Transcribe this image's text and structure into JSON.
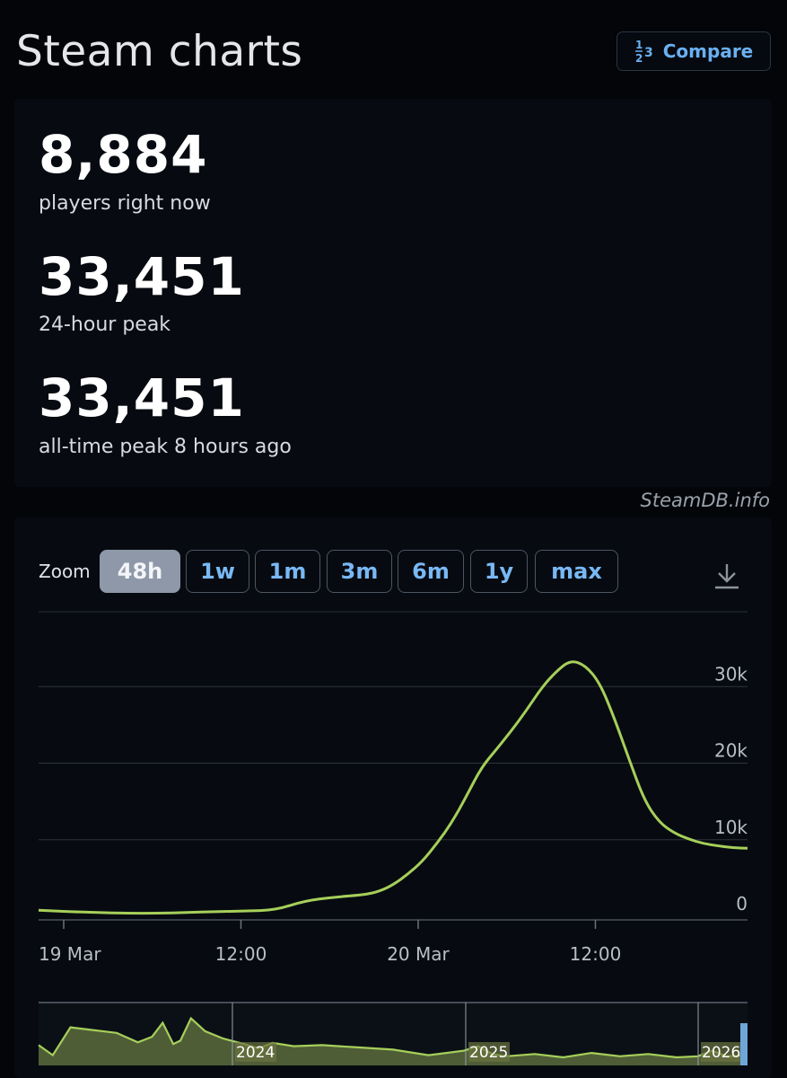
{
  "page": {
    "title": "Steam charts",
    "compare_label": "Compare"
  },
  "stats": [
    {
      "value": "8,884",
      "label": "players right now"
    },
    {
      "value": "33,451",
      "label": "24-hour peak"
    },
    {
      "value": "33,451",
      "label": "all-time peak 8 hours ago"
    }
  ],
  "watermark": "SteamDB.info",
  "zoom": {
    "label": "Zoom",
    "buttons": [
      "48h",
      "1w",
      "1m",
      "3m",
      "6m",
      "1y",
      "max"
    ],
    "active": "48h"
  },
  "icons": {
    "compare": "ranking-numbers-icon",
    "download": "download-arrow-icon"
  },
  "colors": {
    "series_line": "#a6cf5a",
    "active_zoom_bg": "#8f98a8",
    "zoom_text": "#79b8f4"
  },
  "chart_data": {
    "type": "line",
    "title": "",
    "xlabel": "",
    "ylabel": "",
    "ylim": [
      0,
      40000
    ],
    "yticks": [
      0,
      10000,
      20000,
      30000
    ],
    "ytick_labels": [
      "0",
      "10k",
      "20k",
      "30k"
    ],
    "xtick_labels": [
      "19 Mar",
      "12:00",
      "20 Mar",
      "12:00"
    ],
    "grid": true,
    "series": [
      {
        "name": "",
        "x_hours": [
          0,
          2,
          4,
          6,
          8,
          10,
          12,
          14,
          16,
          18,
          20,
          22,
          23,
          24,
          25,
          26,
          27,
          28,
          29,
          30,
          31,
          32,
          33,
          34,
          35,
          36,
          37,
          38,
          39,
          40,
          41,
          42,
          43,
          44,
          45,
          46,
          47,
          48
        ],
        "values": [
          800,
          600,
          500,
          400,
          400,
          500,
          600,
          700,
          800,
          2000,
          2500,
          2800,
          3200,
          4100,
          5500,
          7200,
          9600,
          12300,
          15800,
          19500,
          21800,
          24200,
          26800,
          29700,
          31900,
          33451,
          32800,
          30500,
          25800,
          20400,
          15200,
          12300,
          10900,
          10100,
          9500,
          9200,
          8950,
          8884
        ]
      }
    ],
    "navigator": {
      "labels": [
        "2024",
        "2025",
        "2026"
      ]
    }
  }
}
